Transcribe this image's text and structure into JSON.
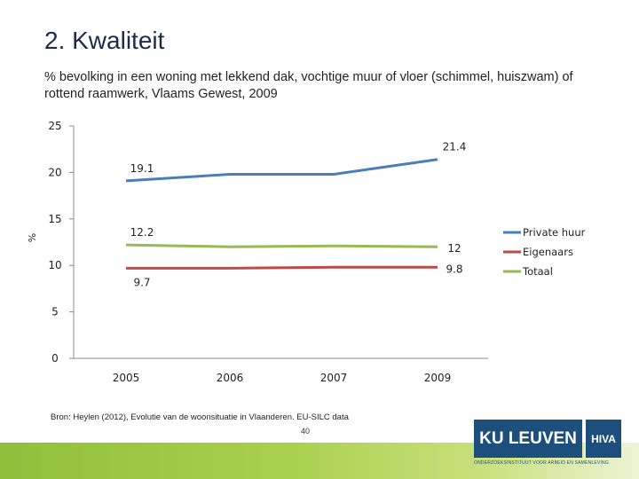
{
  "slide": {
    "title": "2. Kwaliteit",
    "subtitle": "% bevolking in een woning met lekkend dak, vochtige muur of vloer (schimmel, huiszwam) of rottend raamwerk, Vlaams Gewest, 2009",
    "source": "Bron: Heylen (2012), Evolutie van de woonsituatie in Vlaanderen. EU-SILC data",
    "page_number": "40"
  },
  "logo": {
    "ku_text": "KU LEUVEN",
    "hiva_text": "HIVA",
    "caption": "ONDERZOEKSINSTITUUT VOOR ARBEID EN SAMENLEVING"
  },
  "colors": {
    "private_huur": "#4a7ebb",
    "eigenaars": "#be4b48",
    "totaal": "#98b954",
    "title": "#1c2b48",
    "accent_green": "#8fbf3c",
    "logo_blue": "#1d4f7c"
  },
  "chart_data": {
    "type": "line",
    "categories": [
      "2005",
      "2006",
      "2007",
      "2009"
    ],
    "series": [
      {
        "name": "Private huur",
        "values": [
          19.1,
          19.8,
          19.8,
          21.4
        ],
        "color": "#4a7ebb"
      },
      {
        "name": "Eigenaars",
        "values": [
          9.7,
          9.7,
          9.8,
          9.8
        ],
        "color": "#be4b48"
      },
      {
        "name": "Totaal",
        "values": [
          12.2,
          12.0,
          12.1,
          12.0
        ],
        "color": "#98b954"
      }
    ],
    "data_labels": [
      {
        "series": "Private huur",
        "index": 0,
        "text": "19.1"
      },
      {
        "series": "Private huur",
        "index": 3,
        "text": "21.4"
      },
      {
        "series": "Totaal",
        "index": 0,
        "text": "12.2"
      },
      {
        "series": "Totaal",
        "index": 3,
        "text": "12"
      },
      {
        "series": "Eigenaars",
        "index": 0,
        "text": "9.7"
      },
      {
        "series": "Eigenaars",
        "index": 3,
        "text": "9.8"
      }
    ],
    "yticks": [
      "0",
      "5",
      "10",
      "15",
      "20",
      "25"
    ],
    "ylabel": "%",
    "xlabel": "",
    "ylim": [
      0,
      25
    ],
    "grid": false,
    "legend_position": "right"
  }
}
